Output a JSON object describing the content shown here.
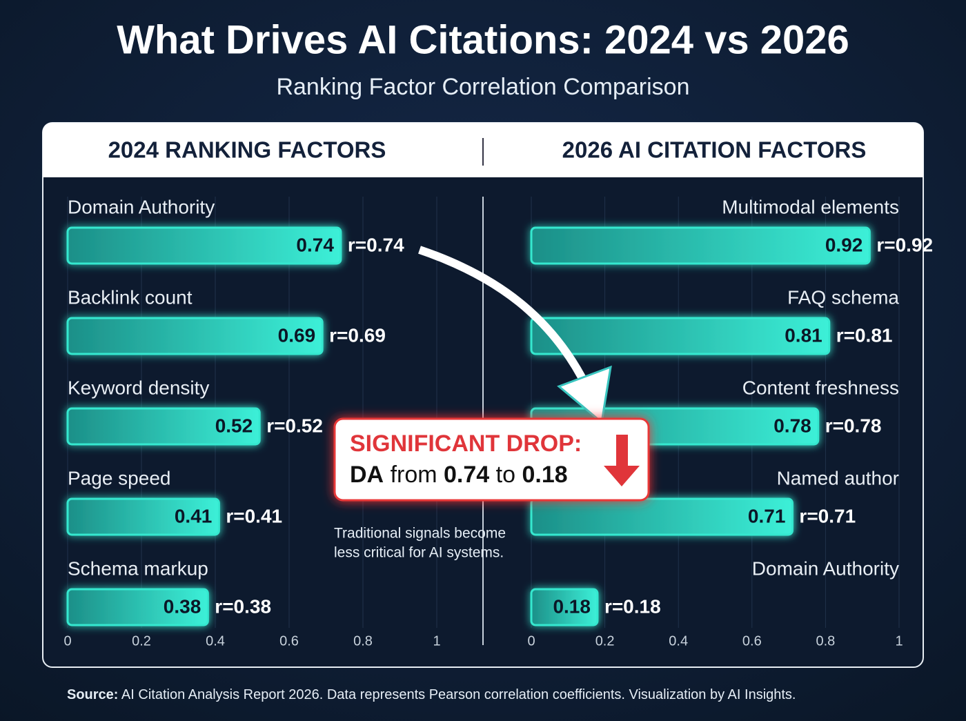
{
  "title": "What Drives AI Citations: 2024 vs 2026",
  "subtitle": "Ranking Factor Correlation Comparison",
  "chart_data": [
    {
      "type": "bar",
      "title": "2024 RANKING FACTORS",
      "categories": [
        "Domain Authority",
        "Backlink count",
        "Keyword density",
        "Page speed",
        "Schema markup"
      ],
      "values": [
        0.74,
        0.69,
        0.52,
        0.41,
        0.38
      ],
      "value_labels": [
        "r=0.74",
        "r=0.69",
        "r=0.52",
        "r=0.41",
        "r=0.38"
      ],
      "color": "#35e8cf",
      "xlim": [
        0,
        1
      ],
      "xticks": [
        0,
        0.2,
        0.4,
        0.6,
        0.8,
        1
      ],
      "grid": true
    },
    {
      "type": "bar",
      "title": "2026 AI CITATION FACTORS",
      "categories": [
        "Multimodal elements",
        "FAQ schema",
        "Content freshness",
        "Named author",
        "Domain Authority"
      ],
      "values": [
        0.92,
        0.81,
        0.78,
        0.71,
        0.18
      ],
      "value_labels": [
        "r=0.92",
        "r=0.81",
        "r=0.78",
        "r=0.71",
        "r=0.18"
      ],
      "color": "#35e8cf",
      "xlim": [
        0,
        1
      ],
      "xticks": [
        0,
        0.2,
        0.4,
        0.6,
        0.8,
        1
      ],
      "grid": true
    }
  ],
  "callout": {
    "heading": "SIGNIFICANT DROP:",
    "line": [
      "DA",
      "from",
      "0.74",
      "to",
      "0.18"
    ]
  },
  "note": [
    "Traditional signals become",
    "less critical for AI systems."
  ],
  "source": {
    "label": "Source:",
    "text": "AI Citation Analysis Report 2026. Data represents Pearson correlation coefficients. Visualization by AI Insights."
  }
}
